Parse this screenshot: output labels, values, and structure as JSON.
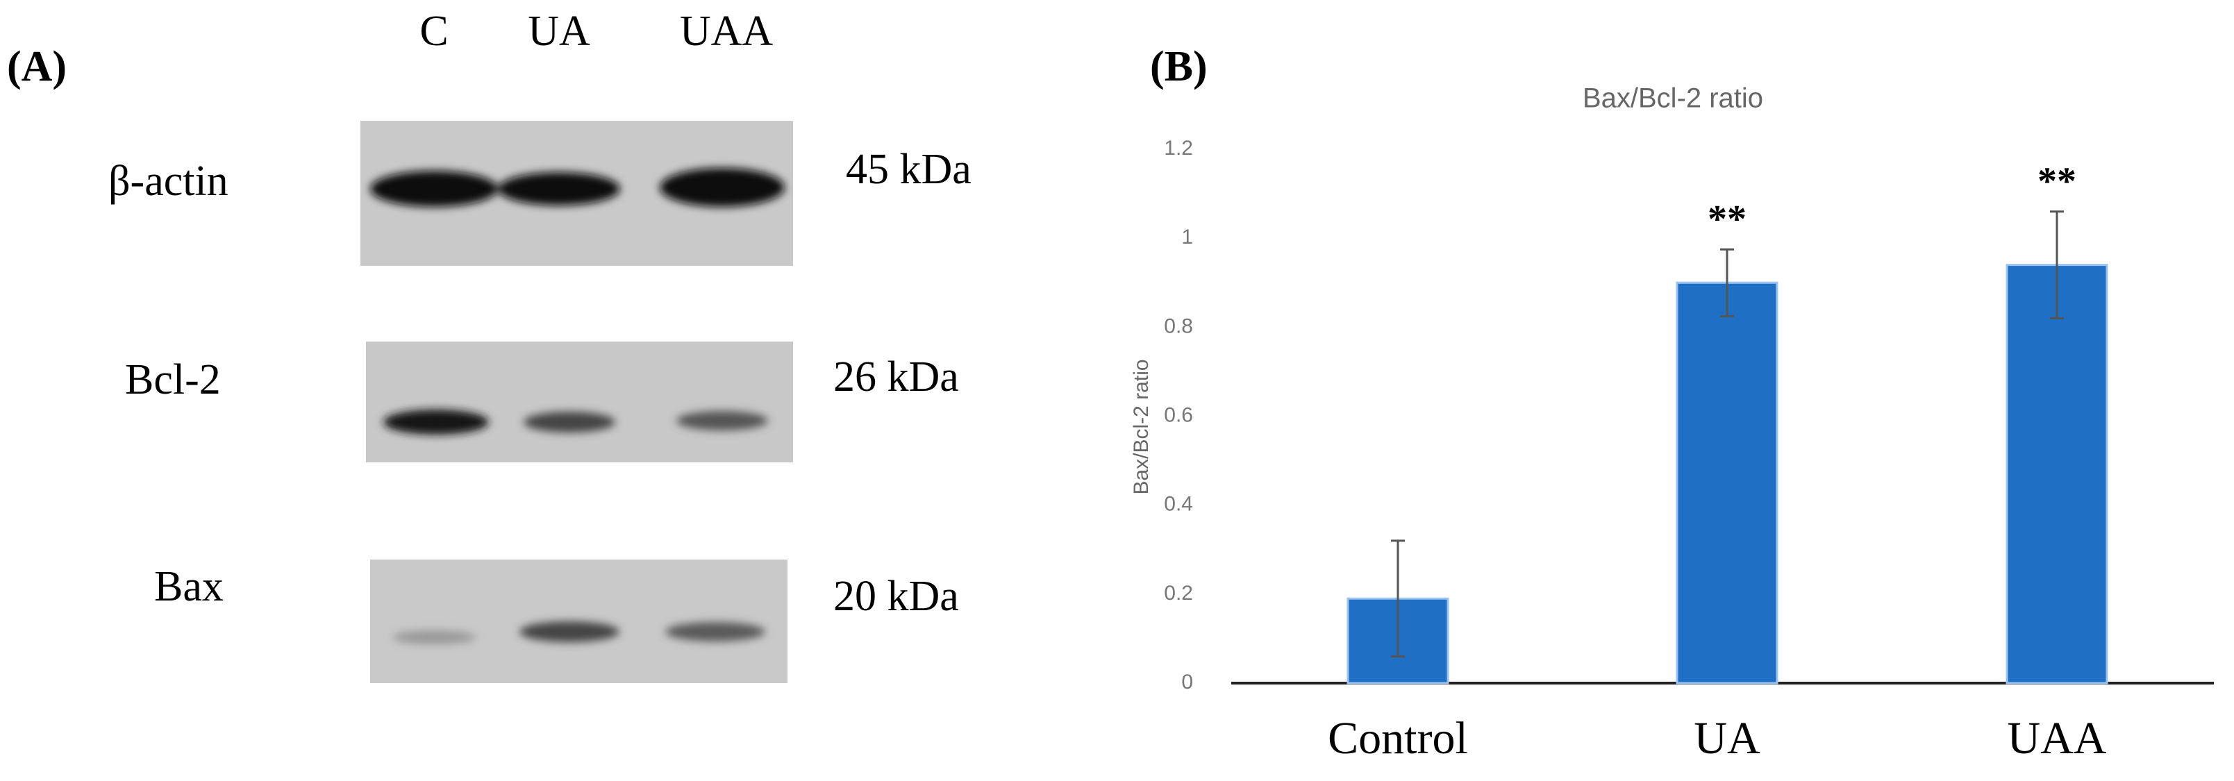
{
  "panel_a": {
    "label": "(A)",
    "lanes": [
      "C",
      "UA",
      "UAA"
    ],
    "rows": [
      {
        "name": "β-actin",
        "size": "45 kDa"
      },
      {
        "name": "Bcl-2",
        "size": "26 kDa"
      },
      {
        "name": "Bax",
        "size": "20 kDa"
      }
    ]
  },
  "chart_data": {
    "type": "bar",
    "panel_label": "(B)",
    "title": "Bax/Bcl-2 ratio",
    "y_label": "Bax/Bcl-2 ratio",
    "categories": [
      "Control",
      "UA",
      "UAA"
    ],
    "values": [
      0.19,
      0.9,
      0.94
    ],
    "errors": [
      0.13,
      0.075,
      0.12
    ],
    "significance": [
      null,
      "**",
      "**"
    ],
    "color": "#1f6fc5",
    "ylim": [
      0,
      1.2
    ],
    "yticks": [
      0,
      0.2,
      0.4,
      0.6,
      0.8,
      1,
      1.2
    ]
  }
}
